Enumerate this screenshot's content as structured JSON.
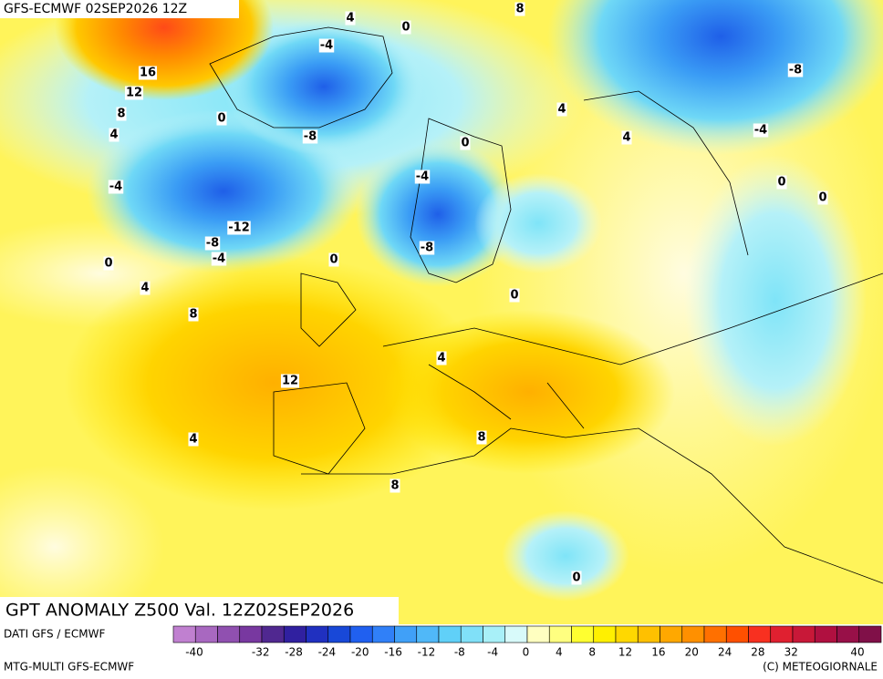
{
  "header": {
    "title": "GFS-ECMWF 02SEP2026 12Z"
  },
  "map": {
    "contour_labels": [
      "4",
      "0",
      "8",
      "-4",
      "16",
      "12",
      "8",
      "4",
      "0",
      "-8",
      "0",
      "4",
      "4",
      "-8",
      "-4",
      "0",
      "0",
      "-4",
      "-4",
      "-12",
      "-8",
      "-4",
      "-8",
      "0",
      "0",
      "4",
      "0",
      "8",
      "4",
      "12",
      "4",
      "8",
      "8",
      "0"
    ]
  },
  "footer": {
    "title": "GPT ANOMALY Z500 Val. 12Z02SEP2026",
    "source": "DATI GFS / ECMWF",
    "model": "MTG-MULTI GFS-ECMWF",
    "credit": "(C) METEOGIORNALE"
  },
  "legend": {
    "colors": [
      "#c080d0",
      "#a868c0",
      "#9050b0",
      "#7838a0",
      "#502890",
      "#3020a0",
      "#2030c0",
      "#1848d8",
      "#2060f0",
      "#3080f8",
      "#40a0f8",
      "#50b8f8",
      "#60d0f8",
      "#80e0f8",
      "#a8f0f8",
      "#d8fafa",
      "#ffffc0",
      "#ffff80",
      "#ffff30",
      "#fff000",
      "#ffd800",
      "#ffc000",
      "#ffa800",
      "#ff9000",
      "#ff7000",
      "#ff5000",
      "#f83020",
      "#e02030",
      "#c81838",
      "#b01040",
      "#981048",
      "#801048"
    ],
    "range": [
      -40,
      40
    ],
    "ticks": [
      -40,
      -32,
      -28,
      -24,
      -20,
      -16,
      -12,
      -8,
      -4,
      0,
      4,
      8,
      12,
      16,
      20,
      24,
      28,
      32,
      40
    ]
  }
}
